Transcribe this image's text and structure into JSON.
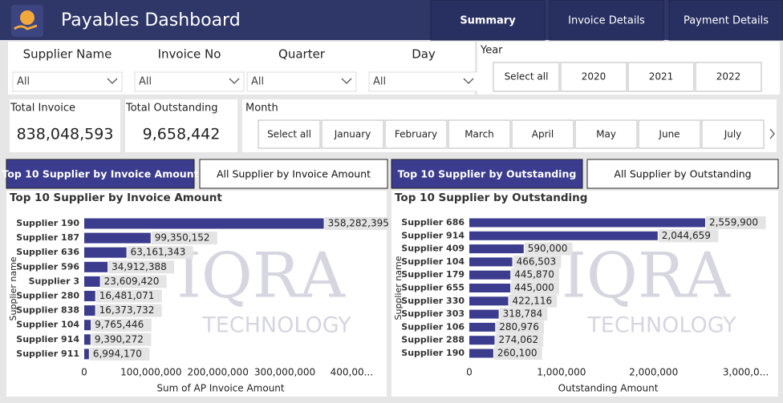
{
  "header": {
    "title": "Payables Dashboard",
    "tabs": [
      "Summary",
      "Invoice Details",
      "Payment Details"
    ]
  },
  "filters": [
    {
      "label": "Supplier Name",
      "value": "All"
    },
    {
      "label": "Invoice No",
      "value": "All"
    },
    {
      "label": "Quarter",
      "value": "All"
    },
    {
      "label": "Day",
      "value": "All"
    }
  ],
  "year": {
    "label": "Year",
    "options": [
      "Select all",
      "2020",
      "2021",
      "2022"
    ]
  },
  "kpis": [
    {
      "label": "Total Invoice",
      "value": "838,048,593"
    },
    {
      "label": "Total Outstanding",
      "value": "9,658,442"
    }
  ],
  "month": {
    "label": "Month",
    "options": [
      "Select all",
      "January",
      "February",
      "March",
      "April",
      "May",
      "June",
      "July"
    ]
  },
  "buttons": [
    "Top 10 Supplier by Invoice Amount",
    "All Supplier by Invoice Amount",
    "Top 10 Supplier by Outstanding",
    "All Supplier by Outstanding"
  ],
  "watermark": [
    "IQRA",
    "TECHNOLOGY"
  ],
  "chart_data": [
    {
      "type": "bar",
      "orientation": "horizontal",
      "title": "Top 10 Supplier by Invoice Amount",
      "color": "#3b3c8e",
      "categories": [
        "Supplier 190",
        "Supplier 187",
        "Supplier 636",
        "Supplier 596",
        "Supplier 3",
        "Supplier 280",
        "Supplier 838",
        "Supplier 104",
        "Supplier 914",
        "Supplier 911"
      ],
      "values": [
        358282395,
        99350152,
        63161343,
        34912388,
        23609420,
        16481071,
        16373732,
        9765446,
        9390272,
        6994170
      ],
      "value_labels": [
        "358,282,395",
        "99,350,152",
        "63,161,343",
        "34,912,388",
        "23,609,420",
        "16,481,071",
        "16,373,732",
        "9,765,446",
        "9,390,272",
        "6,994,170"
      ],
      "xlim": [
        0,
        420000000
      ],
      "xticks": [
        0,
        {
          "value": 100000000,
          "label": "100,000,000"
        },
        {
          "value": 200000000,
          "label": "200,000,000"
        },
        {
          "value": 300000000,
          "label": "300,000,000"
        },
        {
          "value": 400000000,
          "label": "400,00..."
        }
      ],
      "x_label": "Sum of AP Invoice Amount",
      "y_label": "Supplier name"
    },
    {
      "type": "bar",
      "orientation": "horizontal",
      "title": "Top 10 Supplier by Outstanding",
      "color": "#3b3c8e",
      "categories": [
        "Supplier 686",
        "Supplier 914",
        "Supplier 409",
        "Supplier 104",
        "Supplier 179",
        "Supplier 655",
        "Supplier 330",
        "Supplier 303",
        "Supplier 106",
        "Supplier 288",
        "Supplier 190"
      ],
      "values": [
        2559900,
        2044659,
        590000,
        466503,
        445870,
        445000,
        422116,
        318784,
        280976,
        274062,
        260100
      ],
      "value_labels": [
        "2,559,900",
        "2,044,659",
        "590,000",
        "466,503",
        "445,870",
        "445,000",
        "422,116",
        "318,784",
        "280,976",
        "274,062",
        "260,100"
      ],
      "xlim": [
        0,
        3100000
      ],
      "xticks": [
        0,
        {
          "value": 1000000,
          "label": "1,000,000"
        },
        {
          "value": 2000000,
          "label": "2,000,000"
        },
        {
          "value": 3000000,
          "label": "3,000,0..."
        }
      ],
      "x_label": "Outstanding Amount",
      "y_label": "Supplier name"
    }
  ]
}
